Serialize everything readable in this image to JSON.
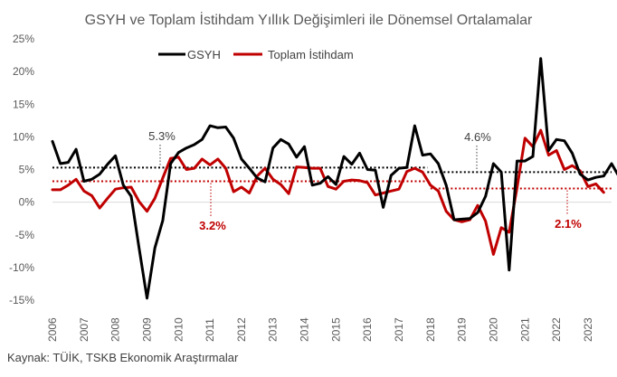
{
  "chart_data": {
    "type": "line",
    "title": "GSYH ve Toplam İstihdam Yıllık Değişimleri ile Dönemsel Ortalamalar",
    "source": "Kaynak: TÜİK, TSKB Ekonomik Araştırmalar",
    "x_tick_labels": [
      "2006",
      "2007",
      "2008",
      "2009",
      "2010",
      "2011",
      "2012",
      "2013",
      "2014",
      "2015",
      "2016",
      "2017",
      "2018",
      "2019",
      "2020",
      "2021",
      "2022",
      "2023"
    ],
    "y_tick_labels": [
      "25%",
      "20%",
      "15%",
      "10%",
      "5%",
      "0%",
      "-5%",
      "-10%",
      "-15%"
    ],
    "y_ticks": [
      25,
      20,
      15,
      10,
      5,
      0,
      -5,
      -10,
      -15
    ],
    "ylim": [
      -15,
      25
    ],
    "x_unit": "quarter",
    "x_start": "2006Q1",
    "x_range": [
      2006.0,
      2023.75
    ],
    "series": [
      {
        "name": "GSYH",
        "color": "#000000",
        "values": [
          9.3,
          5.9,
          6.1,
          8.1,
          3.2,
          3.5,
          4.3,
          5.8,
          7.1,
          2.6,
          0.9,
          -7.0,
          -14.7,
          -7.0,
          -2.8,
          5.9,
          7.6,
          8.3,
          8.8,
          9.6,
          11.7,
          11.4,
          11.5,
          9.8,
          6.6,
          5.2,
          3.7,
          3.1,
          8.3,
          9.6,
          8.9,
          6.9,
          8.5,
          2.6,
          2.9,
          3.9,
          2.7,
          7.0,
          5.8,
          7.5,
          5.0,
          4.9,
          -0.8,
          4.1,
          5.2,
          5.3,
          11.7,
          7.2,
          7.4,
          5.9,
          2.6,
          -2.7,
          -2.6,
          -2.5,
          -1.6,
          0.9,
          5.9,
          4.6,
          -10.4,
          6.3,
          6.3,
          7.0,
          22.0,
          7.9,
          9.6,
          9.4,
          7.5,
          4.3,
          3.4,
          3.8,
          4.0,
          5.9,
          3.8
        ]
      },
      {
        "name": "Toplam İstihdam",
        "color": "#c00000",
        "values": [
          1.9,
          1.9,
          2.6,
          3.5,
          1.7,
          1.0,
          -0.9,
          0.6,
          2.0,
          2.2,
          2.3,
          0.1,
          -1.4,
          0.6,
          3.7,
          6.7,
          6.9,
          5.0,
          5.2,
          6.6,
          5.7,
          6.6,
          5.2,
          1.6,
          2.3,
          1.4,
          4.0,
          5.2,
          3.5,
          2.7,
          1.3,
          5.4,
          5.3,
          5.2,
          5.2,
          2.4,
          2.0,
          3.2,
          3.4,
          3.3,
          3.0,
          1.1,
          1.4,
          1.7,
          2.0,
          4.7,
          5.2,
          4.6,
          2.6,
          1.7,
          -1.4,
          -2.7,
          -3.0,
          -2.7,
          -0.5,
          -2.9,
          -8.0,
          -3.9,
          -4.6,
          2.2,
          9.8,
          8.5,
          11.0,
          7.2,
          7.9,
          5.0,
          5.6,
          4.8,
          2.4,
          2.8,
          1.5
        ]
      }
    ],
    "period_averages": [
      {
        "series": "GSYH",
        "value": 5.3,
        "label": "5.3%",
        "x_range": [
          2006.0,
          2017.9
        ]
      },
      {
        "series": "GSYH",
        "value": 4.6,
        "label": "4.6%",
        "x_range": [
          2017.9,
          2023.75
        ]
      },
      {
        "series": "Toplam İstihdam",
        "value": 3.2,
        "label": "3.2%",
        "x_range": [
          2006.0,
          2017.9
        ]
      },
      {
        "series": "Toplam İstihdam",
        "value": 2.1,
        "label": "2.1%",
        "x_range": [
          2018.0,
          2023.75
        ]
      }
    ],
    "legend_position": "top-left",
    "grid": false
  }
}
